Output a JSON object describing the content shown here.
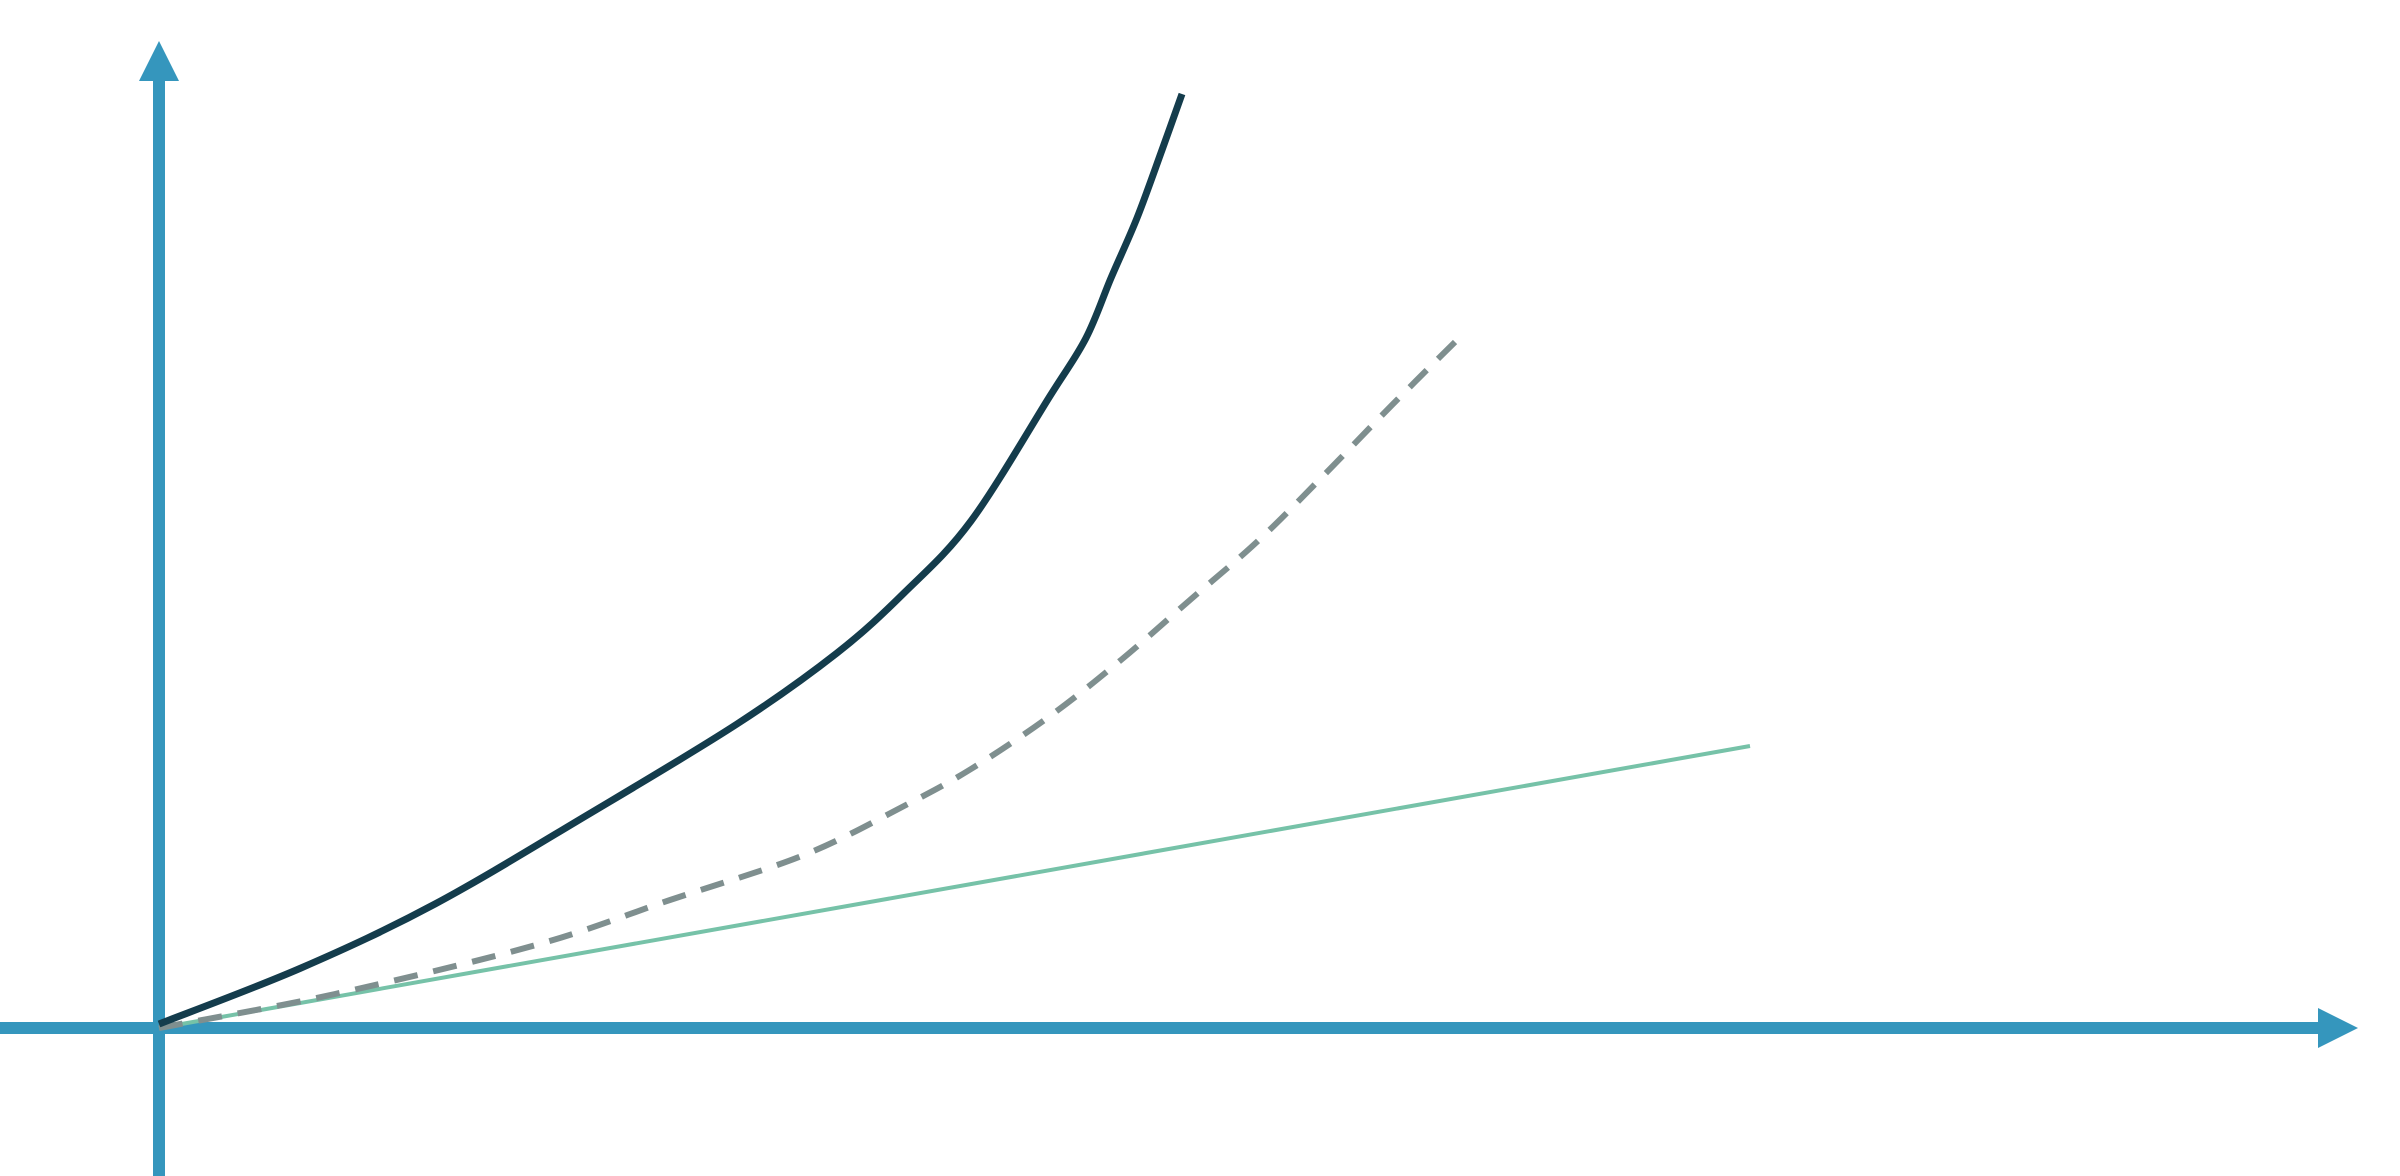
{
  "diagram": {
    "axes": {
      "color": "#3596bd",
      "arrows": true
    },
    "curves": [
      {
        "id": "steep-curve",
        "color": "#143c4c",
        "style": "solid"
      },
      {
        "id": "moderate-curve",
        "color": "#7f8f8f",
        "style": "dashed"
      },
      {
        "id": "linear-line",
        "color": "#76c2a8",
        "style": "solid"
      }
    ]
  }
}
